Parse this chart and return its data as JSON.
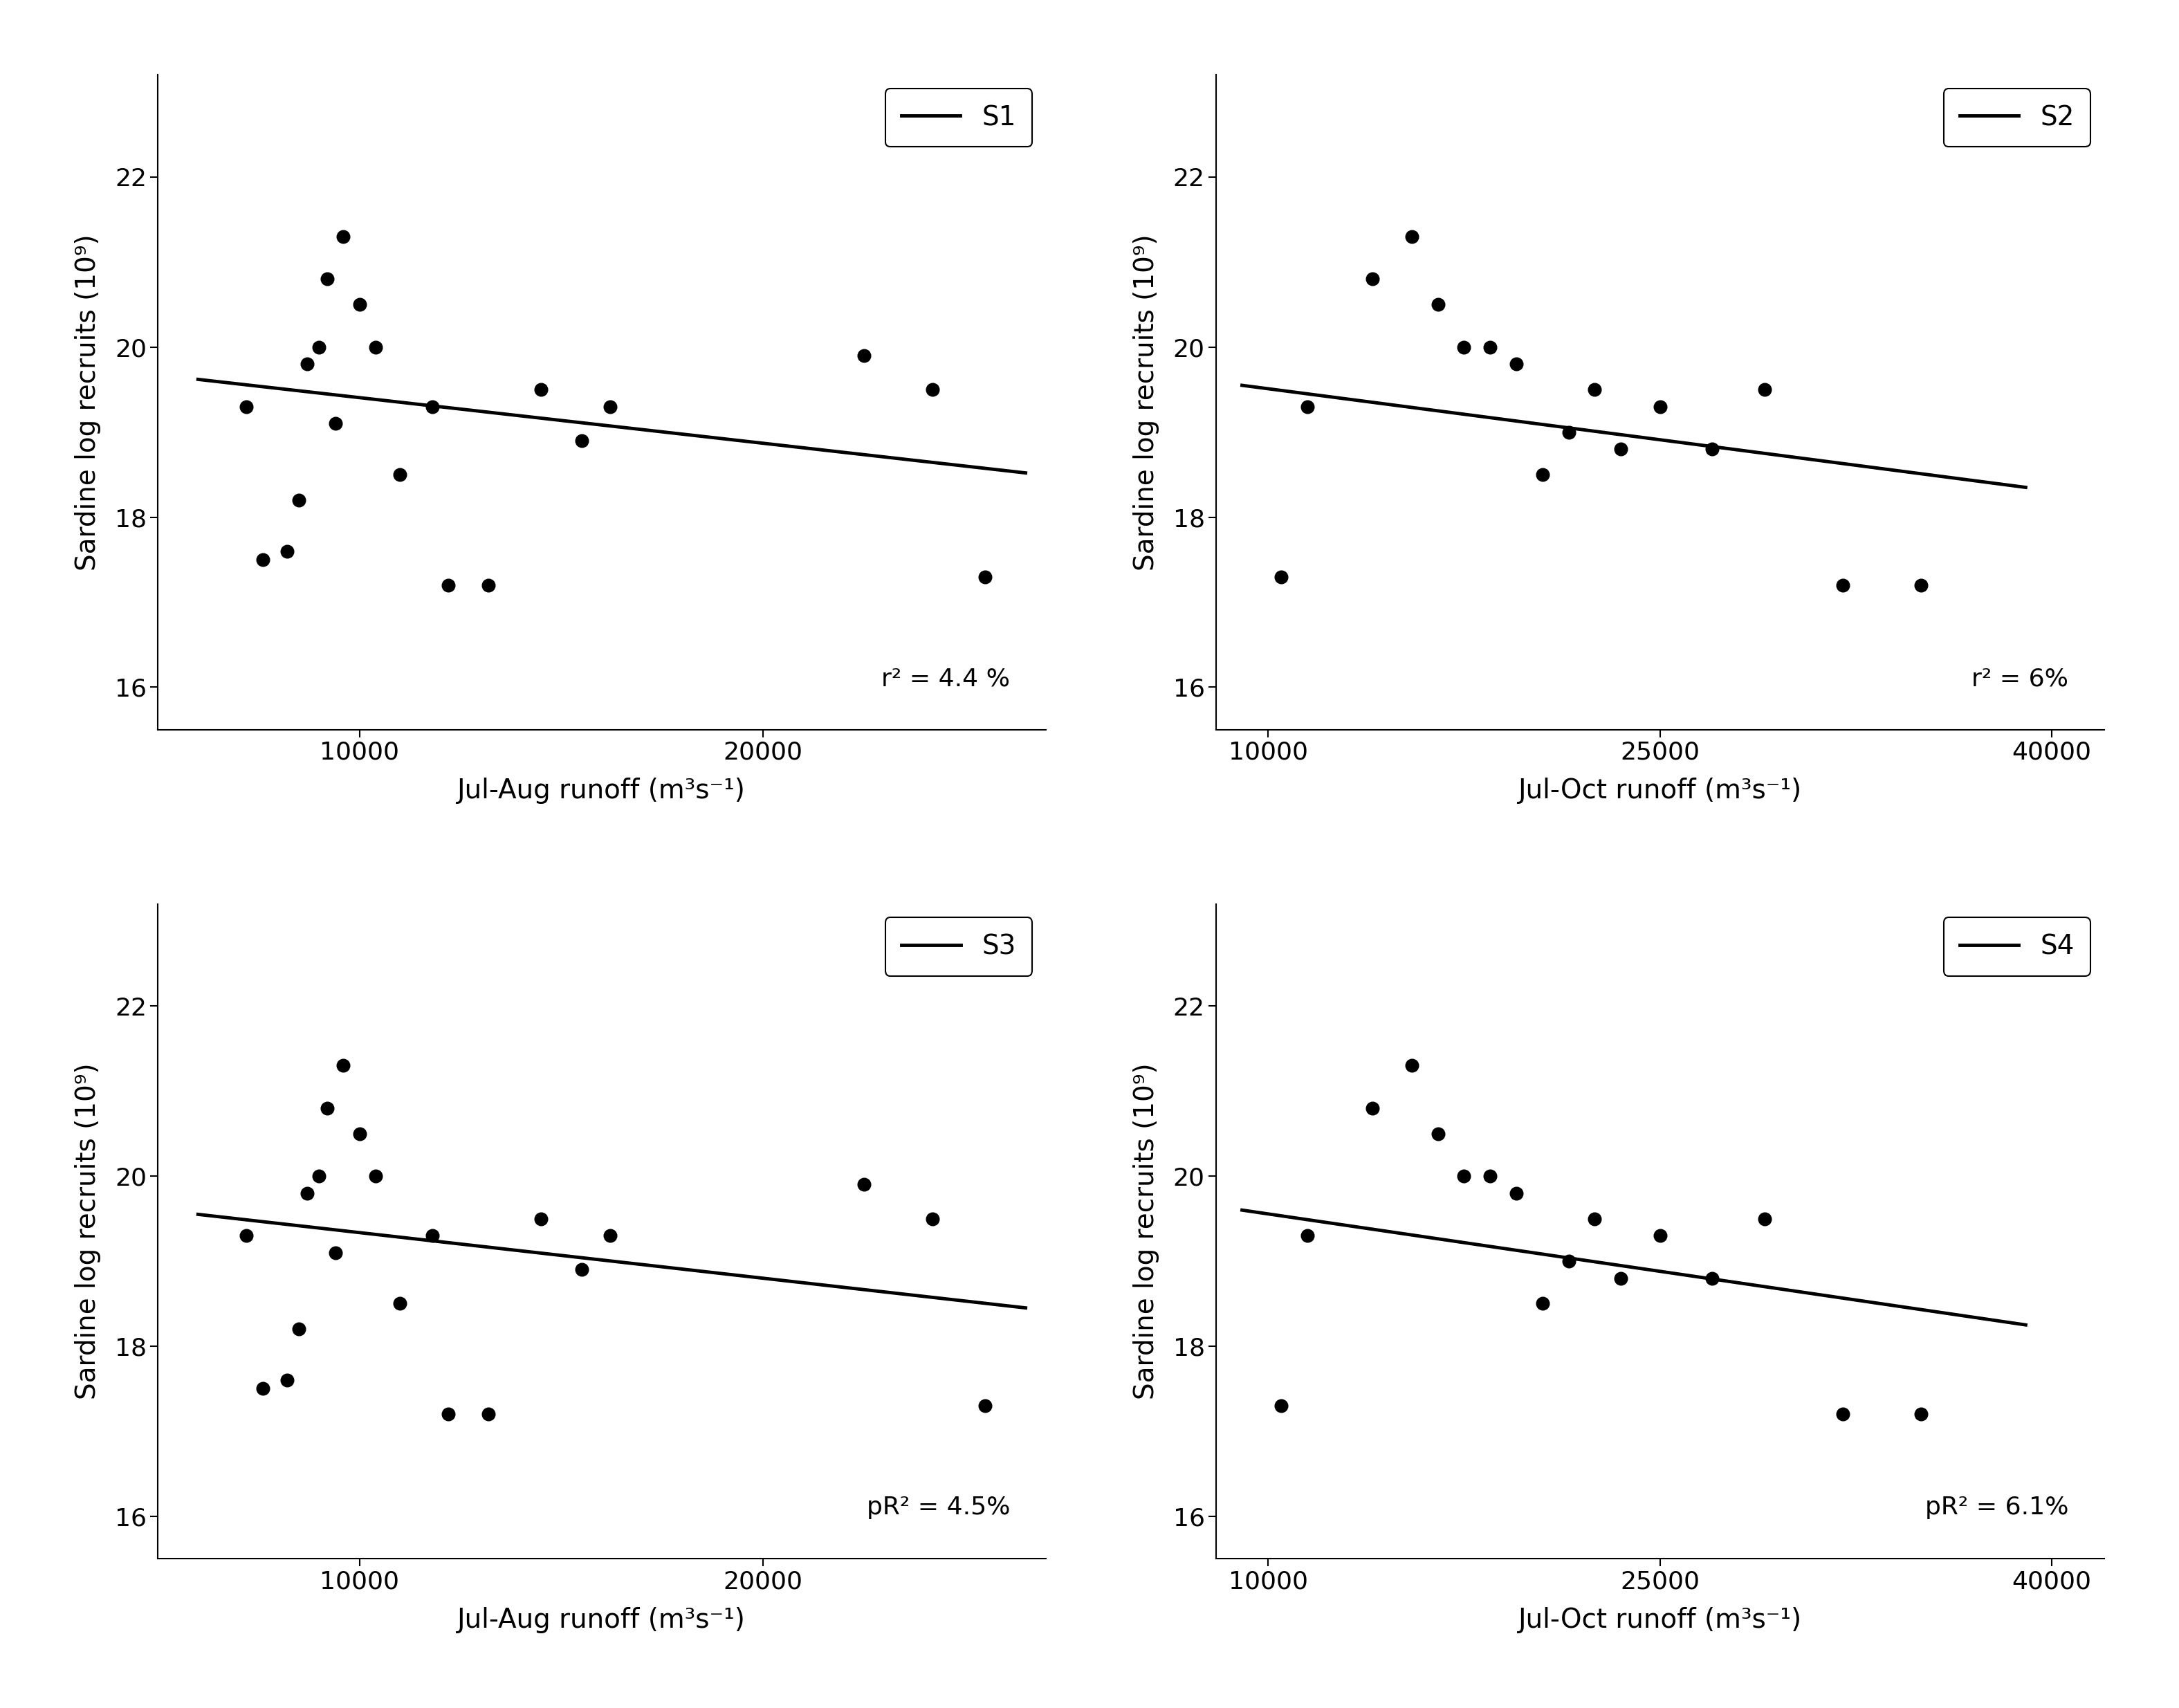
{
  "panels": [
    {
      "label": "S1",
      "xlabel": "Jul-Aug runoff (m³s⁻¹)",
      "ylabel": "Sardine log recruits (10⁹)",
      "r2_text": "r² = 4.4 %",
      "xlim": [
        5000,
        27000
      ],
      "ylim": [
        15.5,
        23.2
      ],
      "xticks": [
        10000,
        20000
      ],
      "yticks": [
        16,
        18,
        20,
        22
      ],
      "scatter_x": [
        7200,
        7600,
        8200,
        8500,
        8700,
        9000,
        9200,
        9400,
        9600,
        10000,
        10400,
        11000,
        11800,
        12200,
        13200,
        14500,
        15500,
        16200,
        22500,
        24200,
        25500
      ],
      "scatter_y": [
        19.3,
        17.5,
        17.6,
        18.2,
        19.8,
        20.0,
        20.8,
        19.1,
        21.3,
        20.5,
        20.0,
        18.5,
        19.3,
        17.2,
        17.2,
        19.5,
        18.9,
        19.3,
        19.9,
        19.5,
        17.3
      ],
      "line_x": [
        6000,
        26500
      ],
      "line_y": [
        19.62,
        18.52
      ]
    },
    {
      "label": "S2",
      "xlabel": "Jul-Oct runoff (m³s⁻¹)",
      "ylabel": "Sardine log recruits (10⁹)",
      "r2_text": "r² = 6%",
      "xlim": [
        8000,
        42000
      ],
      "ylim": [
        15.5,
        23.2
      ],
      "xticks": [
        10000,
        25000,
        40000
      ],
      "yticks": [
        16,
        18,
        20,
        22
      ],
      "scatter_x": [
        10500,
        11500,
        14000,
        15500,
        16500,
        17500,
        18500,
        19500,
        20500,
        21500,
        22500,
        23500,
        25000,
        27000,
        29000,
        32000,
        35000
      ],
      "scatter_y": [
        17.3,
        19.3,
        20.8,
        21.3,
        20.5,
        20.0,
        20.0,
        19.8,
        18.5,
        19.0,
        19.5,
        18.8,
        19.3,
        18.8,
        19.5,
        17.2,
        17.2
      ],
      "line_x": [
        9000,
        39000
      ],
      "line_y": [
        19.55,
        18.35
      ]
    },
    {
      "label": "S3",
      "xlabel": "Jul-Aug runoff (m³s⁻¹)",
      "ylabel": "Sardine log recruits (10⁹)",
      "r2_text": "pR² = 4.5%",
      "xlim": [
        5000,
        27000
      ],
      "ylim": [
        15.5,
        23.2
      ],
      "xticks": [
        10000,
        20000
      ],
      "yticks": [
        16,
        18,
        20,
        22
      ],
      "scatter_x": [
        7200,
        7600,
        8200,
        8500,
        8700,
        9000,
        9200,
        9400,
        9600,
        10000,
        10400,
        11000,
        11800,
        12200,
        13200,
        14500,
        15500,
        16200,
        22500,
        24200,
        25500
      ],
      "scatter_y": [
        19.3,
        17.5,
        17.6,
        18.2,
        19.8,
        20.0,
        20.8,
        19.1,
        21.3,
        20.5,
        20.0,
        18.5,
        19.3,
        17.2,
        17.2,
        19.5,
        18.9,
        19.3,
        19.9,
        19.5,
        17.3
      ],
      "line_x": [
        6000,
        26500
      ],
      "line_y": [
        19.55,
        18.45
      ]
    },
    {
      "label": "S4",
      "xlabel": "Jul-Oct runoff (m³s⁻¹)",
      "ylabel": "Sardine log recruits (10⁹)",
      "r2_text": "pR² = 6.1%",
      "xlim": [
        8000,
        42000
      ],
      "ylim": [
        15.5,
        23.2
      ],
      "xticks": [
        10000,
        25000,
        40000
      ],
      "yticks": [
        16,
        18,
        20,
        22
      ],
      "scatter_x": [
        10500,
        11500,
        14000,
        15500,
        16500,
        17500,
        18500,
        19500,
        20500,
        21500,
        22500,
        23500,
        25000,
        27000,
        29000,
        32000,
        35000
      ],
      "scatter_y": [
        17.3,
        19.3,
        20.8,
        21.3,
        20.5,
        20.0,
        20.0,
        19.8,
        18.5,
        19.0,
        19.5,
        18.8,
        19.3,
        18.8,
        19.5,
        17.2,
        17.2
      ],
      "line_x": [
        9000,
        39000
      ],
      "line_y": [
        19.6,
        18.25
      ]
    }
  ],
  "dot_color": "#000000",
  "dot_size": 180,
  "line_color": "#000000",
  "line_width": 3.5,
  "axis_fontsize": 28,
  "tick_fontsize": 26,
  "legend_fontsize": 28,
  "annot_fontsize": 26,
  "background_color": "#ffffff"
}
